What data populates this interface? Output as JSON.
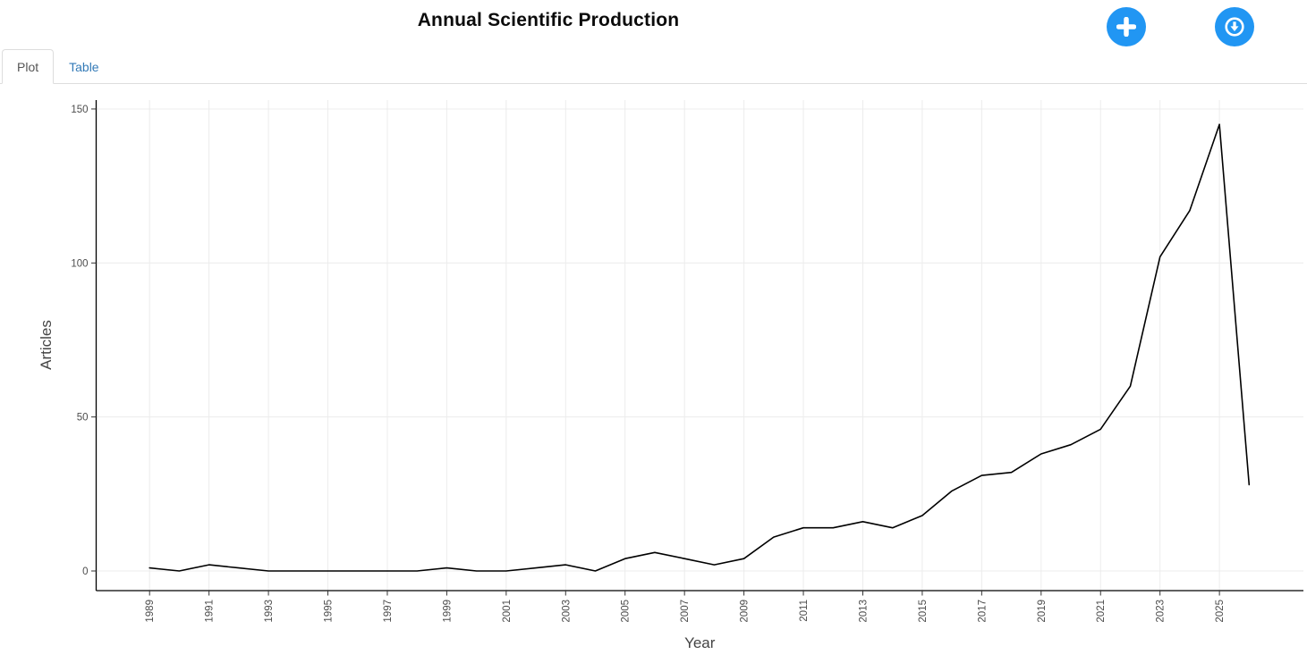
{
  "header": {
    "title": "Annual Scientific Production",
    "accent_color": "#2196f3",
    "buttons": [
      {
        "id": "add",
        "icon": "plus-icon"
      },
      {
        "id": "download",
        "icon": "download-circle-icon"
      }
    ]
  },
  "tabs": [
    {
      "label": "Plot",
      "active": true
    },
    {
      "label": "Table",
      "active": false
    }
  ],
  "chart_data": {
    "type": "line",
    "title": "Annual Scientific Production",
    "xlabel": "Year",
    "ylabel": "Articles",
    "x": [
      1989,
      1990,
      1991,
      1992,
      1993,
      1994,
      1995,
      1996,
      1997,
      1998,
      1999,
      2000,
      2001,
      2002,
      2003,
      2004,
      2005,
      2006,
      2007,
      2008,
      2009,
      2010,
      2011,
      2012,
      2013,
      2014,
      2015,
      2016,
      2017,
      2018,
      2019,
      2020,
      2021,
      2022,
      2023,
      2024,
      2025,
      2026
    ],
    "values": [
      1,
      0,
      2,
      1,
      0,
      0,
      0,
      0,
      0,
      0,
      1,
      0,
      0,
      1,
      2,
      0,
      4,
      6,
      4,
      2,
      4,
      11,
      14,
      14,
      16,
      14,
      18,
      26,
      31,
      32,
      38,
      41,
      46,
      60,
      102,
      117,
      145,
      28
    ],
    "series_name": "Articles",
    "xticks": [
      1989,
      1991,
      1993,
      1995,
      1997,
      1999,
      2001,
      2003,
      2005,
      2007,
      2009,
      2011,
      2013,
      2015,
      2017,
      2019,
      2021,
      2023,
      2025
    ],
    "yticks": [
      0,
      50,
      100,
      150
    ],
    "ylim": [
      0,
      150
    ],
    "xlim": [
      1989,
      2026
    ],
    "grid": true,
    "legend": "none",
    "line_color": "#000000",
    "axis_color": "#000000",
    "grid_color": "#ececec",
    "tick_label_color": "#4d4d4d",
    "axis_title_color": "#444444"
  }
}
